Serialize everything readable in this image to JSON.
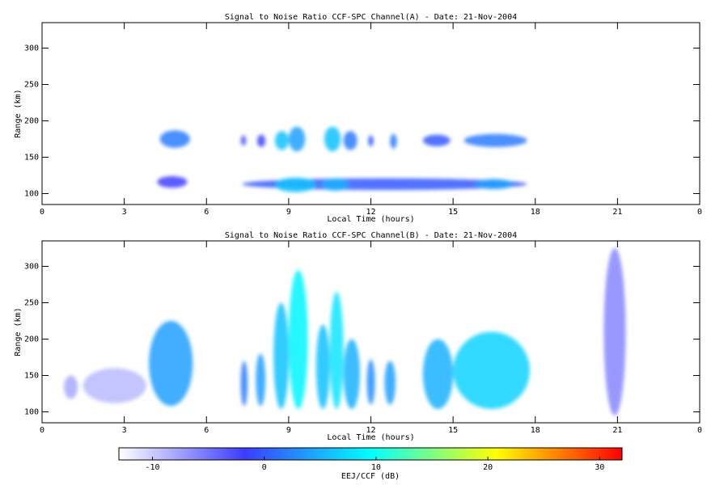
{
  "chart_data": [
    {
      "type": "heatmap",
      "title": "Signal to Noise Ratio CCF-SPC Channel(A) - Date: 21-Nov-2004",
      "x_label": "Local Time (hours)",
      "y_label": "Range (km)",
      "xlim": [
        0,
        24
      ],
      "xticks": [
        0,
        3,
        6,
        9,
        12,
        15,
        18,
        21,
        {
          "value": 24,
          "label": "0"
        }
      ],
      "ylim": [
        85,
        335
      ],
      "yticks": [
        100,
        150,
        200,
        250,
        300
      ],
      "regions": [
        {
          "x": [
            4.3,
            5.4
          ],
          "y": [
            163,
            187
          ],
          "value": 2
        },
        {
          "x": [
            4.2,
            5.3
          ],
          "y": [
            108,
            124
          ],
          "value": -2
        },
        {
          "x": [
            7.25,
            7.45
          ],
          "y": [
            166,
            180
          ],
          "value": -3
        },
        {
          "x": [
            7.85,
            8.15
          ],
          "y": [
            164,
            181
          ],
          "value": -1
        },
        {
          "x": [
            8.5,
            9.0
          ],
          "y": [
            160,
            186
          ],
          "value": 6
        },
        {
          "x": [
            9.0,
            9.6
          ],
          "y": [
            158,
            192
          ],
          "value": 4
        },
        {
          "x": [
            10.3,
            10.9
          ],
          "y": [
            158,
            192
          ],
          "value": 6
        },
        {
          "x": [
            11.0,
            11.5
          ],
          "y": [
            160,
            186
          ],
          "value": 2
        },
        {
          "x": [
            11.9,
            12.1
          ],
          "y": [
            165,
            180
          ],
          "value": 0
        },
        {
          "x": [
            12.7,
            12.95
          ],
          "y": [
            162,
            182
          ],
          "value": 2
        },
        {
          "x": [
            13.9,
            14.9
          ],
          "y": [
            165,
            181
          ],
          "value": 0
        },
        {
          "x": [
            15.4,
            17.7
          ],
          "y": [
            164,
            182
          ],
          "value": 2
        },
        {
          "x": [
            7.3,
            17.7
          ],
          "y": [
            105,
            121
          ],
          "value": 0
        },
        {
          "x": [
            8.5,
            10.0
          ],
          "y": [
            102,
            122
          ],
          "value": 6
        },
        {
          "x": [
            10.2,
            11.2
          ],
          "y": [
            104,
            121
          ],
          "value": 5
        },
        {
          "x": [
            15.8,
            17.2
          ],
          "y": [
            106,
            120
          ],
          "value": 4
        }
      ]
    },
    {
      "type": "heatmap",
      "title": "Signal to Noise Ratio CCF-SPC Channel(B) - Date: 21-Nov-2004",
      "x_label": "Local Time (hours)",
      "y_label": "Range (km)",
      "xlim": [
        0,
        24
      ],
      "xticks": [
        0,
        3,
        6,
        9,
        12,
        15,
        18,
        21,
        {
          "value": 24,
          "label": "0"
        }
      ],
      "ylim": [
        85,
        335
      ],
      "yticks": [
        100,
        150,
        200,
        250,
        300
      ],
      "regions": [
        {
          "x": [
            0.8,
            1.3
          ],
          "y": [
            118,
            150
          ],
          "value": -8
        },
        {
          "x": [
            1.5,
            3.8
          ],
          "y": [
            112,
            160
          ],
          "value": -9
        },
        {
          "x": [
            3.9,
            5.5
          ],
          "y": [
            108,
            225
          ],
          "value": 4
        },
        {
          "x": [
            7.25,
            7.5
          ],
          "y": [
            108,
            170
          ],
          "value": 2
        },
        {
          "x": [
            7.8,
            8.15
          ],
          "y": [
            108,
            180
          ],
          "value": 4
        },
        {
          "x": [
            8.45,
            9.0
          ],
          "y": [
            104,
            250
          ],
          "value": 6
        },
        {
          "x": [
            9.0,
            9.7
          ],
          "y": [
            104,
            295
          ],
          "value": 9
        },
        {
          "x": [
            10.0,
            10.5
          ],
          "y": [
            104,
            220
          ],
          "value": 6
        },
        {
          "x": [
            10.5,
            11.0
          ],
          "y": [
            104,
            265
          ],
          "value": 8
        },
        {
          "x": [
            11.0,
            11.6
          ],
          "y": [
            104,
            200
          ],
          "value": 5
        },
        {
          "x": [
            11.85,
            12.15
          ],
          "y": [
            110,
            172
          ],
          "value": 3
        },
        {
          "x": [
            12.5,
            12.9
          ],
          "y": [
            110,
            170
          ],
          "value": 4
        },
        {
          "x": [
            13.9,
            15.0
          ],
          "y": [
            104,
            200
          ],
          "value": 5
        },
        {
          "x": [
            15.0,
            17.8
          ],
          "y": [
            104,
            210
          ],
          "value": 7
        },
        {
          "x": [
            20.5,
            21.3
          ],
          "y": [
            95,
            325
          ],
          "value": -6
        }
      ]
    }
  ],
  "colorbar": {
    "label": "EEJ/CCF (dB)",
    "lim": [
      -13,
      32
    ],
    "ticks": [
      -10,
      0,
      10,
      20,
      30
    ],
    "colors": [
      "#ffffff",
      "#3c3cff",
      "#00ffff",
      "#ffff00",
      "#ff0000"
    ]
  }
}
